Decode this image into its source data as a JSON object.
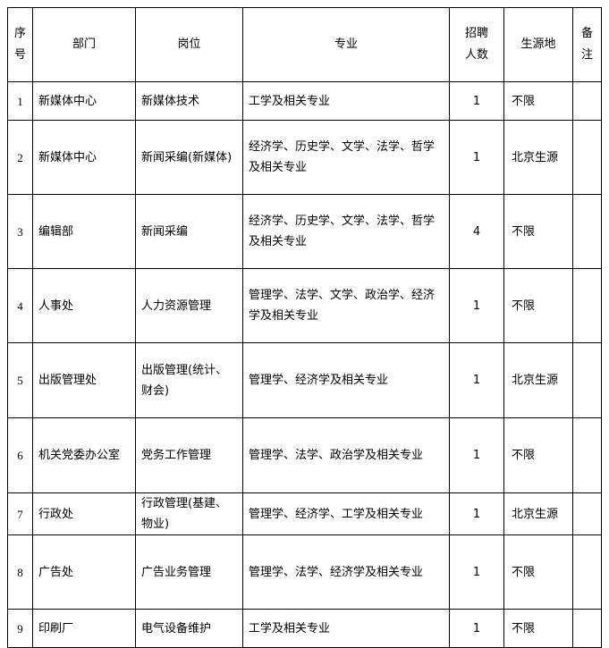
{
  "table": {
    "header": [
      "序号",
      "部门",
      "岗位",
      "专业",
      "招聘人数",
      "生源地",
      "备注"
    ],
    "rows": [
      [
        1,
        "新媒体中心",
        "新媒体技术",
        "工学及相关专业",
        1,
        "不限"
      ],
      [
        2,
        "新媒体中心",
        "新闻采编(新媒体)",
        "经济学、历史学、文学、法学、哲学及相关专业",
        1,
        "北京生源"
      ],
      [
        3,
        "编辑部",
        "新闻采编",
        "经济学、历史学、文学、法学、哲学及相关专业",
        4,
        "不限"
      ],
      [
        4,
        "人事处",
        "人力资源管理",
        "管理学、法学、文学、政治学、经济学及相关专业",
        1,
        "不限"
      ],
      [
        5,
        "出版管理处",
        "出版管理(统计、财会)",
        "管理学、经济学及相关专业",
        1,
        "北京生源"
      ],
      [
        6,
        "机关党委办公室",
        "党务工作管理",
        "管理学、法学、政治学及相关专业",
        1,
        "不限"
      ],
      [
        7,
        "行政处",
        "行政管理(基建、物业)",
        "管理学、经济学、工学及相关专业",
        1,
        "北京生源"
      ],
      [
        8,
        "广告处",
        "广告业务管理",
        "管理学、法学、经济学及相关专业",
        1,
        "不限"
      ],
      [
        9,
        "印刷厂",
        "电气设备维护",
        "工学及相关专业",
        1,
        "不限"
      ]
    ]
  }
}
